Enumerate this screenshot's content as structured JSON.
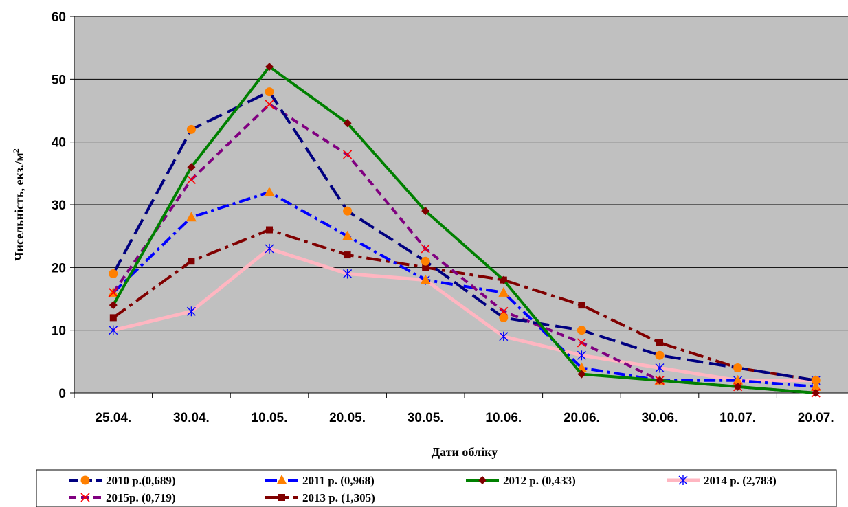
{
  "chart_data": {
    "type": "line",
    "title": "",
    "xlabel": "Дати обліку",
    "ylabel": "Чисельність, екз./м",
    "ylabel_sup": "2",
    "categories": [
      "25.04.",
      "30.04.",
      "10.05.",
      "20.05.",
      "30.05.",
      "10.06.",
      "20.06.",
      "30.06.",
      "10.07.",
      "20.07."
    ],
    "ylim": [
      0,
      60
    ],
    "yticks": [
      0,
      10,
      20,
      30,
      40,
      50,
      60
    ],
    "grid": true,
    "plot_background": "#c0c0c0",
    "legend_position": "bottom",
    "series": [
      {
        "name": "2010 р.(0,689)",
        "values": [
          19,
          42,
          48,
          29,
          21,
          12,
          10,
          6,
          4,
          2
        ],
        "color": "#000080",
        "marker_color": "#ff8000",
        "marker": "circle",
        "dash": "long-dash"
      },
      {
        "name": "2011 р. (0,968)",
        "values": [
          16,
          28,
          32,
          25,
          18,
          16,
          4,
          2,
          2,
          1
        ],
        "color": "#0000ff",
        "marker_color": "#ff8000",
        "marker": "triangle",
        "dash": "dash-dot"
      },
      {
        "name": "2012 р. (0,433)",
        "values": [
          14,
          36,
          52,
          43,
          29,
          18,
          3,
          2,
          1,
          0
        ],
        "color": "#008000",
        "marker_color": "#800000",
        "marker": "diamond",
        "dash": "solid"
      },
      {
        "name": "2014 р. (2,783)",
        "values": [
          10,
          13,
          23,
          19,
          18,
          9,
          6,
          4,
          2,
          2
        ],
        "color": "#ffb6c1",
        "marker_color": "#0000ff",
        "marker": "asterisk",
        "dash": "solid"
      },
      {
        "name": "2015р. (0,719)",
        "values": [
          16,
          34,
          46,
          38,
          23,
          13,
          8,
          2,
          1,
          0
        ],
        "color": "#800080",
        "marker_color": "#ff0000",
        "marker": "x",
        "dash": "dash"
      },
      {
        "name": "2013 р. (1,305)",
        "values": [
          12,
          21,
          26,
          22,
          20,
          18,
          14,
          8,
          4,
          2
        ],
        "color": "#800000",
        "marker_color": "#800000",
        "marker": "square",
        "dash": "long-dash-dot"
      }
    ]
  }
}
